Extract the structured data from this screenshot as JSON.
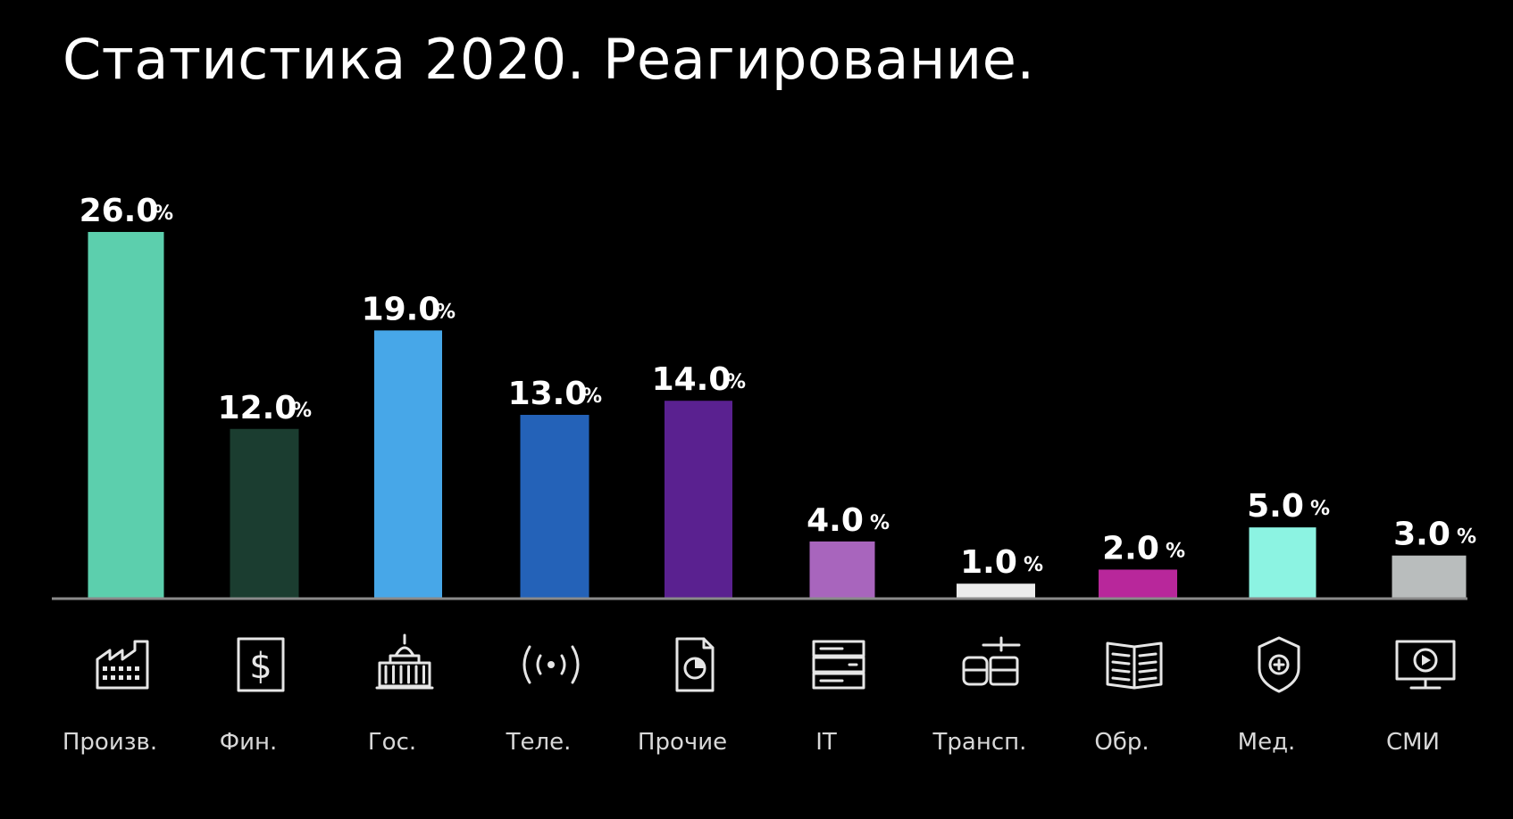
{
  "title": "Статистика 2020. Реагирование.",
  "chart_data": {
    "type": "bar",
    "title": "Статистика 2020. Реагирование.",
    "categories": [
      "Произв.",
      "Фин.",
      "Гос.",
      "Теле.",
      "Прочие",
      "IT",
      "Трансп.",
      "Обр.",
      "Мед.",
      "СМИ"
    ],
    "values": [
      26.0,
      12.0,
      19.0,
      13.0,
      14.0,
      4.0,
      1.0,
      2.0,
      5.0,
      3.0
    ],
    "value_labels": [
      "26.0",
      "12.0",
      "19.0",
      "13.0",
      "14.0",
      "4.0",
      "1.0",
      "2.0",
      "5.0",
      "3.0"
    ],
    "unit": "%",
    "colors": [
      "#5ccfad",
      "#1b3d30",
      "#47a7e8",
      "#2462b8",
      "#5a2190",
      "#a865bd",
      "#ececec",
      "#b8279b",
      "#8cf3e2",
      "#b9bdbd"
    ],
    "icons": [
      "factory-icon",
      "dollar-document-icon",
      "government-building-icon",
      "broadcast-signal-icon",
      "document-chart-icon",
      "server-rack-icon",
      "transport-icon",
      "open-book-icon",
      "medical-shield-icon",
      "monitor-play-icon"
    ],
    "xlabel": "",
    "ylabel": "",
    "ylim": [
      0,
      26
    ],
    "grid": false,
    "legend": "none"
  }
}
